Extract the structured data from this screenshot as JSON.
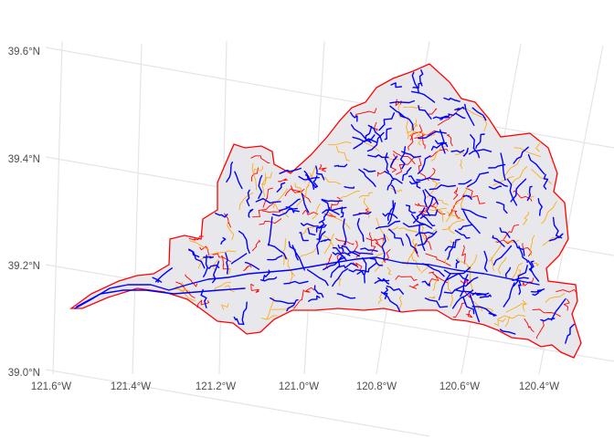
{
  "map": {
    "projection": "rotated graticule (projected watershed map)",
    "graticule": {
      "grid_color": "#e5e5e5",
      "lat_labels": [
        "39.6°N",
        "39.4°N",
        "39.2°N",
        "39.0°N"
      ],
      "lon_labels": [
        "121.6°W",
        "121.4°W",
        "121.2°W",
        "121.0°W",
        "120.8°W",
        "120.6°W",
        "120.4°W"
      ]
    },
    "layers": [
      {
        "name": "watershed-fill",
        "color": "#e8e8ec"
      },
      {
        "name": "catchment-boundaries",
        "color": "#ff0000"
      },
      {
        "name": "minor-flowlines",
        "color": "#ffa500"
      },
      {
        "name": "major-flowlines",
        "color": "#0000ff"
      }
    ]
  }
}
